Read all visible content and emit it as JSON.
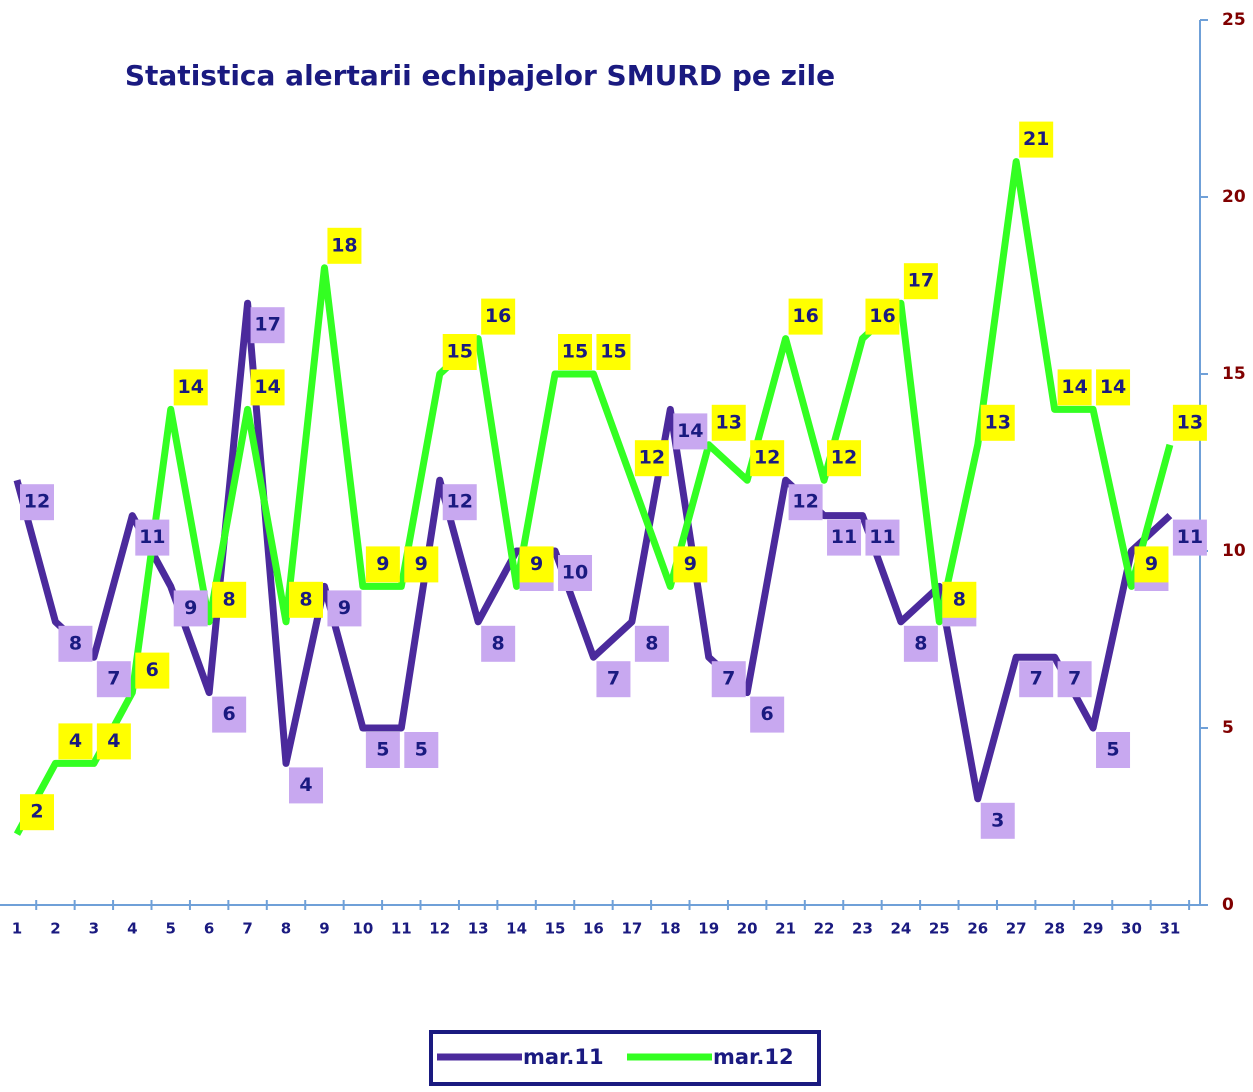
{
  "chart_data": {
    "type": "line",
    "title": "Statistica alertarii echipajelor SMURD pe zile",
    "categories": [
      "1",
      "2",
      "3",
      "4",
      "5",
      "6",
      "7",
      "8",
      "9",
      "10",
      "11",
      "12",
      "13",
      "14",
      "15",
      "16",
      "17",
      "18",
      "19",
      "20",
      "21",
      "22",
      "23",
      "24",
      "25",
      "26",
      "27",
      "28",
      "29",
      "30",
      "31"
    ],
    "series": [
      {
        "name": "mar.11",
        "color": "#4b2a9c",
        "label_bg": "#c8a8f0",
        "values": [
          12,
          8,
          7,
          11,
          9,
          6,
          17,
          4,
          9,
          5,
          5,
          12,
          8,
          10,
          10,
          7,
          8,
          14,
          7,
          6,
          12,
          11,
          11,
          8,
          9,
          3,
          7,
          7,
          5,
          10,
          11
        ]
      },
      {
        "name": "mar.12",
        "color": "#33ff22",
        "label_bg": "#ffff00",
        "values": [
          2,
          4,
          4,
          6,
          14,
          8,
          14,
          8,
          18,
          9,
          9,
          15,
          16,
          9,
          15,
          15,
          12,
          9,
          13,
          12,
          16,
          12,
          16,
          17,
          8,
          13,
          21,
          14,
          14,
          9,
          13
        ]
      }
    ],
    "ylim": [
      0,
      25
    ],
    "yticks": [
      0,
      5,
      10,
      15,
      20,
      25
    ],
    "y_axis_side": "right",
    "legend": "bottom"
  }
}
